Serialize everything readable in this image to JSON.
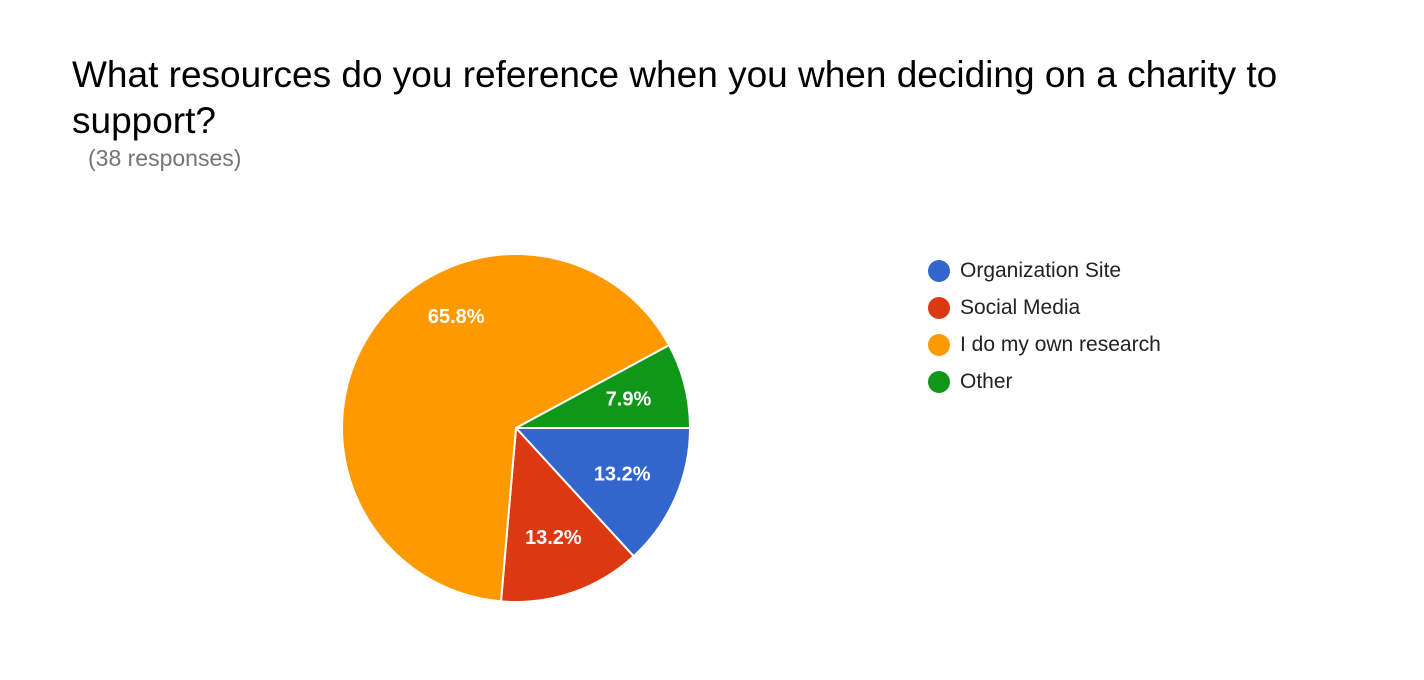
{
  "chart_data": {
    "type": "pie",
    "title": "What resources do you reference when you when deciding on a charity to support?",
    "subtitle": "(38 responses)",
    "legend_position": "right",
    "slices": [
      {
        "label": "Organization Site",
        "percent": 13.2,
        "display": "13.2%",
        "color": "#3366cc"
      },
      {
        "label": "Social Media",
        "percent": 13.2,
        "display": "13.2%",
        "color": "#dc3912"
      },
      {
        "label": "I do my own research",
        "percent": 65.8,
        "display": "65.8%",
        "color": "#ff9900"
      },
      {
        "label": "Other",
        "percent": 7.9,
        "display": "7.9%",
        "color": "#109618"
      }
    ]
  }
}
